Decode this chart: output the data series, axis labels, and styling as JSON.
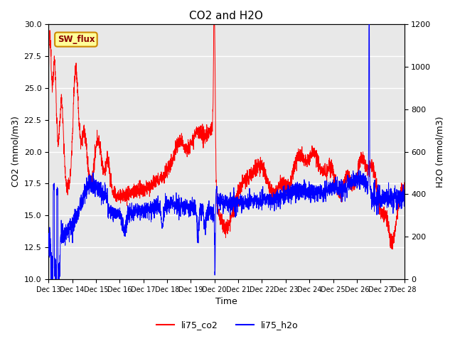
{
  "title": "CO2 and H2O",
  "xlabel": "Time",
  "ylabel_left": "CO2 (mmol/m3)",
  "ylabel_right": "H2O (mmol/m3)",
  "ylim_left": [
    10,
    30
  ],
  "ylim_right": [
    0,
    1200
  ],
  "color_co2": "#ff0000",
  "color_h2o": "#0000ff",
  "legend_labels": [
    "li75_co2",
    "li75_h2o"
  ],
  "annotation_text": "SW_flux",
  "annotation_bg": "#ffff99",
  "annotation_border": "#cc8800",
  "x_tick_labels": [
    "Dec 13",
    "Dec 14",
    "Dec 15",
    "Dec 16",
    "Dec 17",
    "Dec 18",
    "Dec 19",
    "Dec 20",
    "Dec 21",
    "Dec 22",
    "Dec 23",
    "Dec 24",
    "Dec 25",
    "Dec 26",
    "Dec 27",
    "Dec 28"
  ],
  "background_color": "#e8e8e8",
  "grid_color": "#ffffff",
  "figsize": [
    6.4,
    4.8
  ],
  "dpi": 100
}
